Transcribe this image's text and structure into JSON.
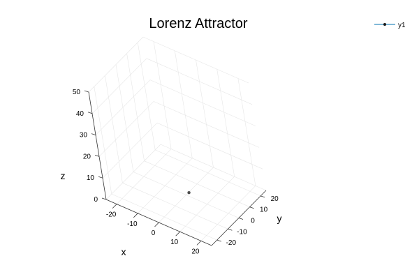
{
  "chart_data": {
    "type": "scatter",
    "title": "Lorenz Attractor",
    "projection": "3d",
    "xlabel": "x",
    "ylabel": "y",
    "zlabel": "z",
    "xlim": [
      -25,
      25
    ],
    "ylim": [
      -25,
      25
    ],
    "zlim": [
      0,
      50
    ],
    "xticks": [
      -20,
      -10,
      0,
      10,
      20
    ],
    "yticks": [
      -20,
      -10,
      0,
      10,
      20
    ],
    "zticks": [
      0,
      10,
      20,
      30,
      40,
      50
    ],
    "grid": true,
    "legend_position": "top-right",
    "series": [
      {
        "name": "y1",
        "color": "#0072b2",
        "marker": "circle",
        "points": [
          {
            "x": 1,
            "y": 1,
            "z": 1
          }
        ]
      }
    ]
  }
}
